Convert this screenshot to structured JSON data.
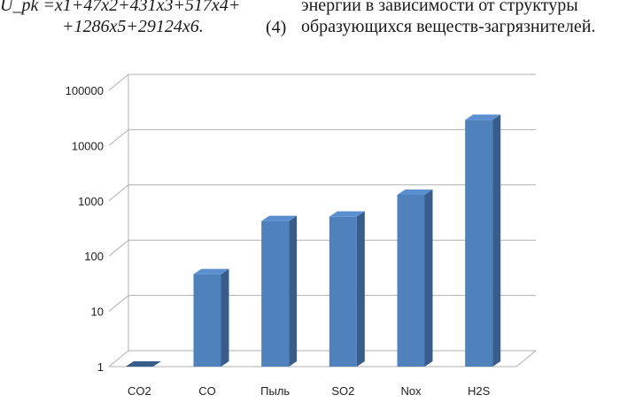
{
  "text": {
    "formula_line1": "U_pk =x1+47x2+431x3+517x4+",
    "formula_line2": "+1286x5+29124x6.",
    "equation_number": "(4)",
    "right_line1": "энергии в зависимости от структуры",
    "right_line2": "образующихся веществ-загрязнителей."
  },
  "chart_data": {
    "type": "bar",
    "title": "",
    "xlabel": "",
    "ylabel": "",
    "yscale": "log",
    "ylim": [
      1,
      100000
    ],
    "yticks": [
      1,
      10,
      100,
      1000,
      10000,
      100000
    ],
    "ytick_labels": [
      "1",
      "10",
      "100",
      "1000",
      "10000",
      "100000"
    ],
    "categories": [
      "CO2",
      "CO",
      "Пыль",
      "SO2",
      "Nox",
      "H2S"
    ],
    "values": [
      1,
      47,
      431,
      517,
      1286,
      29124
    ],
    "grid": true,
    "legend": "none",
    "bar_color": "#4f81bd"
  }
}
